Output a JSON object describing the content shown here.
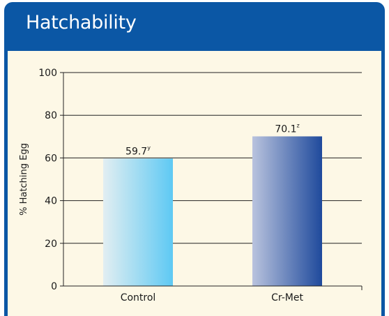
{
  "card": {
    "title": "Hatchability"
  },
  "chart_data": {
    "type": "bar",
    "categories": [
      "Control",
      "Cr-Met"
    ],
    "values": [
      59.7,
      70.1
    ],
    "data_labels": [
      "59.7",
      "70.1"
    ],
    "data_label_superscripts": [
      "y",
      "z"
    ],
    "ylabel": "% Hatching Egg",
    "ylim": [
      0,
      100
    ],
    "yticks": [
      0,
      20,
      40,
      60,
      80,
      100
    ],
    "grid": true,
    "bar_gradients": [
      {
        "from": "#e2eef2",
        "to": "#5ec9f3"
      },
      {
        "from": "#b9c3de",
        "to": "#1f4a9c"
      }
    ]
  }
}
